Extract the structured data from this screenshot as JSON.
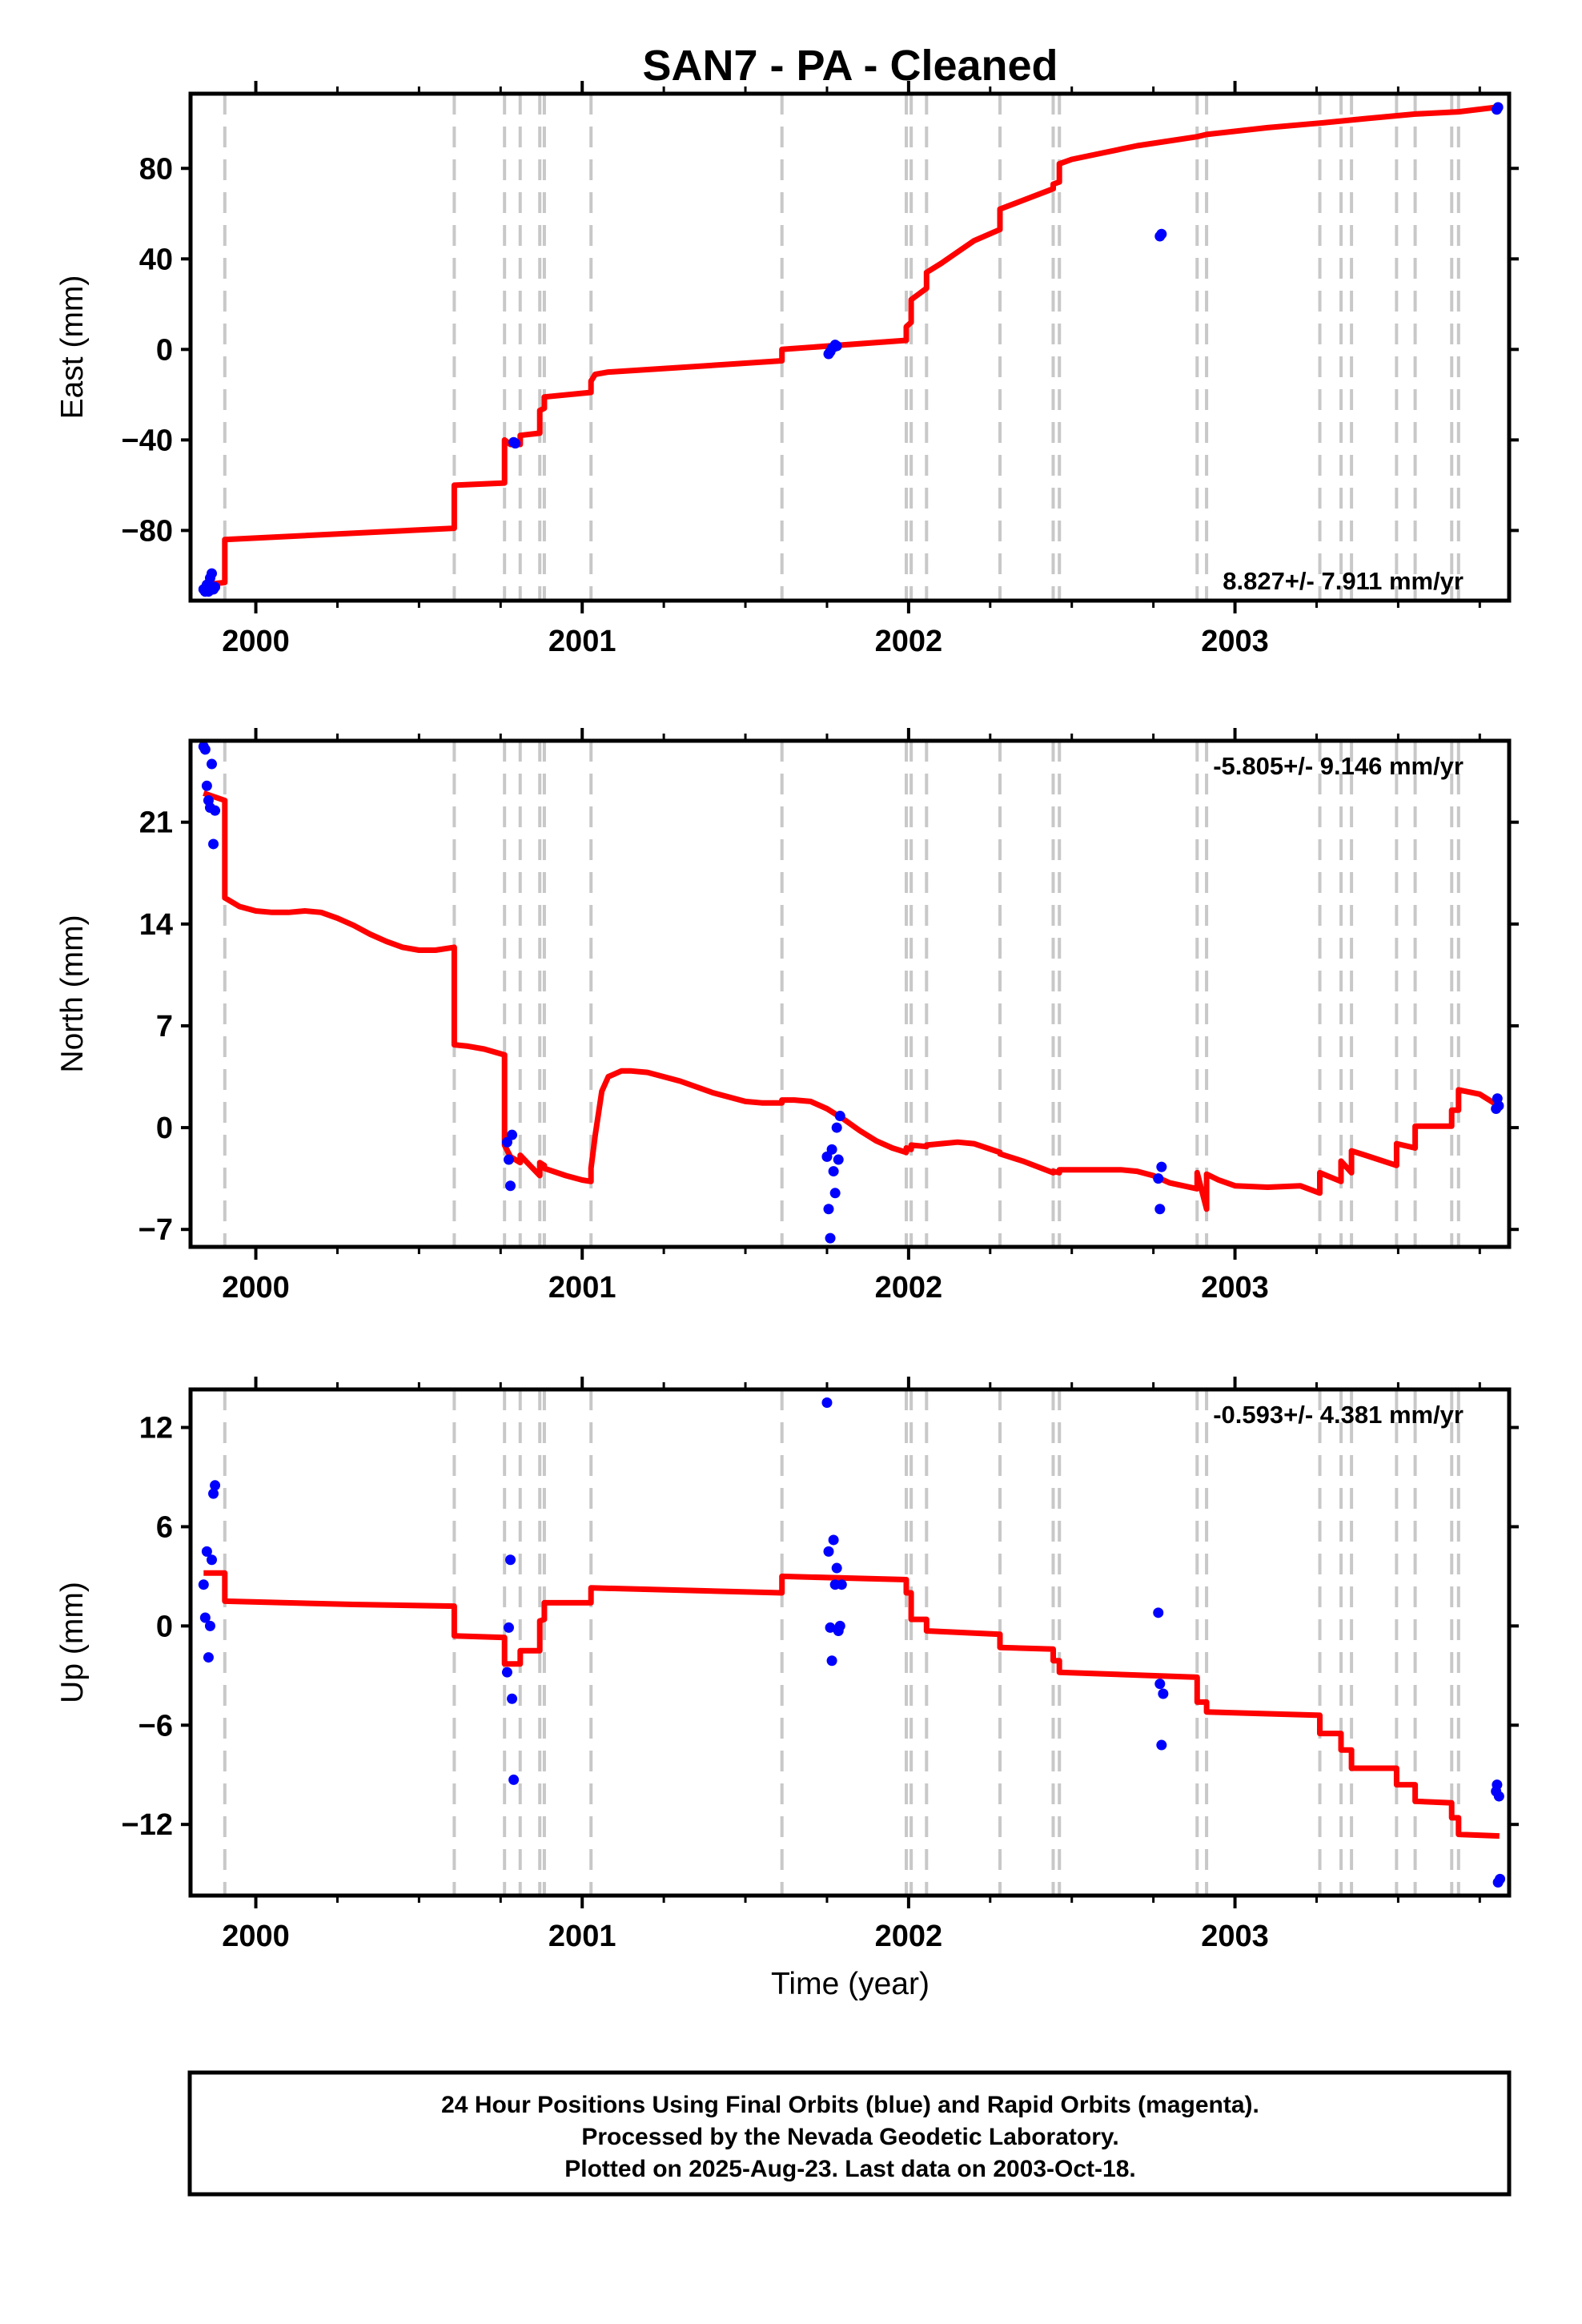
{
  "colors": {
    "model": "#ff0000",
    "points": "#0000ff",
    "events": "#c8c8c8",
    "frame": "#000000"
  },
  "chart_data": {
    "title": "SAN7  - PA - Cleaned",
    "xlabel": "Time (year)",
    "xlim": [
      1999.8,
      2003.84
    ],
    "x_ticks": [
      2000,
      2001,
      2002,
      2003
    ],
    "x_tick_labels": [
      "2000",
      "2001",
      "2002",
      "2003"
    ],
    "event_lines": [
      1999.905,
      2000.608,
      2000.762,
      2000.81,
      2000.87,
      2000.884,
      2001.027,
      2001.612,
      2001.993,
      2002.008,
      2002.055,
      2002.28,
      2002.443,
      2002.462,
      2002.884,
      2002.913,
      2003.26,
      2003.325,
      2003.357,
      2003.495,
      2003.552,
      2003.664,
      2003.685
    ],
    "panels": [
      {
        "name": "east",
        "type": "scatter",
        "ylabel": "East (mm)",
        "ylim": [
          -111,
          113
        ],
        "y_ticks": [
          -80,
          -40,
          0,
          40,
          80
        ],
        "y_tick_labels": [
          "−80",
          "−40",
          "0",
          "40",
          "80"
        ],
        "rate_label": "8.827+/- 7.911 mm/yr",
        "rate_position": "bottom-right",
        "points": [
          [
            1999.84,
            -106
          ],
          [
            1999.845,
            -107
          ],
          [
            1999.85,
            -104
          ],
          [
            1999.855,
            -107
          ],
          [
            1999.86,
            -101
          ],
          [
            1999.865,
            -99
          ],
          [
            1999.87,
            -106
          ],
          [
            1999.875,
            -105
          ],
          [
            2000.79,
            -41
          ],
          [
            2000.795,
            -41.5
          ],
          [
            2001.755,
            -2
          ],
          [
            2001.76,
            -1
          ],
          [
            2001.765,
            0.5
          ],
          [
            2001.77,
            1
          ],
          [
            2001.775,
            2
          ],
          [
            2001.78,
            1.5
          ],
          [
            2002.77,
            50
          ],
          [
            2002.775,
            51
          ],
          [
            2003.802,
            106
          ],
          [
            2003.806,
            107
          ]
        ],
        "model": [
          [
            1999.84,
            -104
          ],
          [
            1999.905,
            -103
          ],
          [
            1999.905,
            -84
          ],
          [
            2000.608,
            -79
          ],
          [
            2000.608,
            -60
          ],
          [
            2000.762,
            -59
          ],
          [
            2000.762,
            -40
          ],
          [
            2000.78,
            -42
          ],
          [
            2000.81,
            -42
          ],
          [
            2000.81,
            -38
          ],
          [
            2000.87,
            -37
          ],
          [
            2000.87,
            -27
          ],
          [
            2000.884,
            -26
          ],
          [
            2000.884,
            -21
          ],
          [
            2001.027,
            -19
          ],
          [
            2001.027,
            -14
          ],
          [
            2001.04,
            -11
          ],
          [
            2001.08,
            -10
          ],
          [
            2001.3,
            -8
          ],
          [
            2001.612,
            -5
          ],
          [
            2001.612,
            0
          ],
          [
            2001.993,
            4
          ],
          [
            2001.993,
            10
          ],
          [
            2002.008,
            12
          ],
          [
            2002.008,
            22
          ],
          [
            2002.055,
            27
          ],
          [
            2002.055,
            34
          ],
          [
            2002.1,
            38
          ],
          [
            2002.15,
            43
          ],
          [
            2002.2,
            48
          ],
          [
            2002.28,
            53
          ],
          [
            2002.28,
            62
          ],
          [
            2002.443,
            71
          ],
          [
            2002.443,
            73
          ],
          [
            2002.462,
            74
          ],
          [
            2002.462,
            82
          ],
          [
            2002.5,
            84
          ],
          [
            2002.6,
            87
          ],
          [
            2002.7,
            90
          ],
          [
            2002.884,
            94
          ],
          [
            2002.913,
            95
          ],
          [
            2003.1,
            98
          ],
          [
            2003.26,
            100
          ],
          [
            2003.4,
            102
          ],
          [
            2003.552,
            104
          ],
          [
            2003.685,
            105
          ],
          [
            2003.8,
            107
          ],
          [
            2003.81,
            107
          ]
        ]
      },
      {
        "name": "north",
        "type": "scatter",
        "ylabel": "North (mm)",
        "ylim": [
          -8.2,
          26.6
        ],
        "y_ticks": [
          -7,
          0,
          7,
          14,
          21
        ],
        "y_tick_labels": [
          "−7",
          "0",
          "7",
          "14",
          "21"
        ],
        "rate_label": "-5.805+/- 9.146 mm/yr",
        "rate_position": "top-right",
        "points": [
          [
            1999.84,
            26.2
          ],
          [
            1999.845,
            26
          ],
          [
            1999.85,
            23.5
          ],
          [
            1999.855,
            22.5
          ],
          [
            1999.86,
            22
          ],
          [
            1999.865,
            25
          ],
          [
            1999.87,
            19.5
          ],
          [
            1999.875,
            21.8
          ],
          [
            2000.77,
            -1
          ],
          [
            2000.775,
            -2.2
          ],
          [
            2000.78,
            -4
          ],
          [
            2000.785,
            -0.5
          ],
          [
            2001.75,
            -2
          ],
          [
            2001.755,
            -5.6
          ],
          [
            2001.76,
            -7.6
          ],
          [
            2001.765,
            -1.5
          ],
          [
            2001.77,
            -3
          ],
          [
            2001.775,
            -4.5
          ],
          [
            2001.78,
            0
          ],
          [
            2001.785,
            -2.2
          ],
          [
            2001.79,
            0.8
          ],
          [
            2002.765,
            -3.5
          ],
          [
            2002.77,
            -5.6
          ],
          [
            2002.775,
            -2.7
          ],
          [
            2003.8,
            1.3
          ],
          [
            2003.804,
            2
          ],
          [
            2003.808,
            1.5
          ]
        ],
        "model": [
          [
            1999.84,
            23
          ],
          [
            1999.905,
            22.5
          ],
          [
            1999.905,
            15.8
          ],
          [
            1999.95,
            15.2
          ],
          [
            2000.0,
            14.9
          ],
          [
            2000.05,
            14.8
          ],
          [
            2000.1,
            14.8
          ],
          [
            2000.15,
            14.9
          ],
          [
            2000.2,
            14.8
          ],
          [
            2000.25,
            14.4
          ],
          [
            2000.3,
            13.9
          ],
          [
            2000.35,
            13.3
          ],
          [
            2000.4,
            12.8
          ],
          [
            2000.45,
            12.4
          ],
          [
            2000.5,
            12.2
          ],
          [
            2000.55,
            12.2
          ],
          [
            2000.608,
            12.4
          ],
          [
            2000.608,
            5.7
          ],
          [
            2000.65,
            5.6
          ],
          [
            2000.7,
            5.4
          ],
          [
            2000.762,
            5
          ],
          [
            2000.762,
            -1.2
          ],
          [
            2000.78,
            -2
          ],
          [
            2000.81,
            -2.4
          ],
          [
            2000.81,
            -1.9
          ],
          [
            2000.87,
            -3.3
          ],
          [
            2000.87,
            -2.4
          ],
          [
            2000.884,
            -2.6
          ],
          [
            2000.884,
            -2.8
          ],
          [
            2000.95,
            -3.3
          ],
          [
            2001.0,
            -3.6
          ],
          [
            2001.027,
            -3.7
          ],
          [
            2001.027,
            -2.8
          ],
          [
            2001.04,
            -0.5
          ],
          [
            2001.06,
            2.5
          ],
          [
            2001.08,
            3.5
          ],
          [
            2001.12,
            3.9
          ],
          [
            2001.15,
            3.9
          ],
          [
            2001.2,
            3.8
          ],
          [
            2001.3,
            3.2
          ],
          [
            2001.4,
            2.4
          ],
          [
            2001.5,
            1.8
          ],
          [
            2001.55,
            1.7
          ],
          [
            2001.612,
            1.7
          ],
          [
            2001.612,
            1.9
          ],
          [
            2001.65,
            1.9
          ],
          [
            2001.7,
            1.8
          ],
          [
            2001.75,
            1.3
          ],
          [
            2001.8,
            0.6
          ],
          [
            2001.85,
            -0.2
          ],
          [
            2001.9,
            -0.9
          ],
          [
            2001.95,
            -1.4
          ],
          [
            2001.993,
            -1.7
          ],
          [
            2001.993,
            -1.4
          ],
          [
            2002.008,
            -1.5
          ],
          [
            2002.008,
            -1.2
          ],
          [
            2002.055,
            -1.3
          ],
          [
            2002.055,
            -1.2
          ],
          [
            2002.1,
            -1.1
          ],
          [
            2002.15,
            -1
          ],
          [
            2002.2,
            -1.1
          ],
          [
            2002.28,
            -1.7
          ],
          [
            2002.28,
            -1.8
          ],
          [
            2002.35,
            -2.3
          ],
          [
            2002.443,
            -3.1
          ],
          [
            2002.443,
            -3
          ],
          [
            2002.462,
            -3.1
          ],
          [
            2002.462,
            -2.9
          ],
          [
            2002.5,
            -2.9
          ],
          [
            2002.6,
            -2.9
          ],
          [
            2002.65,
            -2.9
          ],
          [
            2002.7,
            -3
          ],
          [
            2002.75,
            -3.3
          ],
          [
            2002.8,
            -3.8
          ],
          [
            2002.884,
            -4.2
          ],
          [
            2002.884,
            -3.1
          ],
          [
            2002.913,
            -5.6
          ],
          [
            2002.913,
            -3.2
          ],
          [
            2002.95,
            -3.6
          ],
          [
            2003.0,
            -4
          ],
          [
            2003.1,
            -4.1
          ],
          [
            2003.2,
            -4
          ],
          [
            2003.26,
            -4.5
          ],
          [
            2003.26,
            -3.1
          ],
          [
            2003.325,
            -3.7
          ],
          [
            2003.325,
            -2.3
          ],
          [
            2003.357,
            -3.1
          ],
          [
            2003.357,
            -1.6
          ],
          [
            2003.4,
            -1.9
          ],
          [
            2003.495,
            -2.6
          ],
          [
            2003.495,
            -1.1
          ],
          [
            2003.552,
            -1.4
          ],
          [
            2003.552,
            0.1
          ],
          [
            2003.664,
            0.1
          ],
          [
            2003.664,
            1.2
          ],
          [
            2003.685,
            1.2
          ],
          [
            2003.685,
            2.6
          ],
          [
            2003.75,
            2.3
          ],
          [
            2003.8,
            1.6
          ],
          [
            2003.81,
            1.5
          ]
        ]
      },
      {
        "name": "up",
        "type": "scatter",
        "ylabel": "Up (mm)",
        "ylim": [
          -16.3,
          14.3
        ],
        "y_ticks": [
          -12,
          -6,
          0,
          6,
          12
        ],
        "y_tick_labels": [
          "−12",
          "−6",
          "0",
          "6",
          "12"
        ],
        "rate_label": "-0.593+/- 4.381 mm/yr",
        "rate_position": "top-right",
        "points": [
          [
            1999.84,
            2.5
          ],
          [
            1999.845,
            0.5
          ],
          [
            1999.85,
            4.5
          ],
          [
            1999.855,
            -1.9
          ],
          [
            1999.86,
            0
          ],
          [
            1999.865,
            4
          ],
          [
            1999.87,
            8
          ],
          [
            1999.875,
            8.5
          ],
          [
            2000.77,
            -2.8
          ],
          [
            2000.775,
            -0.1
          ],
          [
            2000.78,
            4
          ],
          [
            2000.785,
            -4.4
          ],
          [
            2000.79,
            -9.3
          ],
          [
            2001.75,
            13.5
          ],
          [
            2001.755,
            4.5
          ],
          [
            2001.76,
            -0.1
          ],
          [
            2001.765,
            -2.1
          ],
          [
            2001.77,
            5.2
          ],
          [
            2001.775,
            2.5
          ],
          [
            2001.78,
            3.5
          ],
          [
            2001.785,
            -0.3
          ],
          [
            2001.79,
            0
          ],
          [
            2001.795,
            2.5
          ],
          [
            2002.765,
            0.8
          ],
          [
            2002.77,
            -3.5
          ],
          [
            2002.775,
            -7.2
          ],
          [
            2002.78,
            -4.1
          ],
          [
            2003.8,
            -10
          ],
          [
            2003.803,
            -9.6
          ],
          [
            2003.806,
            -15.5
          ],
          [
            2003.809,
            -10.3
          ],
          [
            2003.812,
            -15.3
          ]
        ],
        "model": [
          [
            1999.84,
            3.2
          ],
          [
            1999.905,
            3.2
          ],
          [
            1999.905,
            1.5
          ],
          [
            2000.3,
            1.3
          ],
          [
            2000.608,
            1.2
          ],
          [
            2000.608,
            -0.6
          ],
          [
            2000.762,
            -0.7
          ],
          [
            2000.762,
            -2.3
          ],
          [
            2000.81,
            -2.3
          ],
          [
            2000.81,
            -1.5
          ],
          [
            2000.87,
            -1.5
          ],
          [
            2000.87,
            0.3
          ],
          [
            2000.884,
            0.4
          ],
          [
            2000.884,
            1.4
          ],
          [
            2001.027,
            1.4
          ],
          [
            2001.027,
            2.3
          ],
          [
            2001.612,
            2
          ],
          [
            2001.612,
            3
          ],
          [
            2001.993,
            2.8
          ],
          [
            2001.993,
            2
          ],
          [
            2002.008,
            2
          ],
          [
            2002.008,
            0.4
          ],
          [
            2002.055,
            0.4
          ],
          [
            2002.055,
            -0.3
          ],
          [
            2002.28,
            -0.5
          ],
          [
            2002.28,
            -1.3
          ],
          [
            2002.443,
            -1.4
          ],
          [
            2002.443,
            -2.1
          ],
          [
            2002.462,
            -2.1
          ],
          [
            2002.462,
            -2.8
          ],
          [
            2002.884,
            -3.1
          ],
          [
            2002.884,
            -4.6
          ],
          [
            2002.913,
            -4.6
          ],
          [
            2002.913,
            -5.2
          ],
          [
            2003.26,
            -5.4
          ],
          [
            2003.26,
            -6.5
          ],
          [
            2003.325,
            -6.5
          ],
          [
            2003.325,
            -7.5
          ],
          [
            2003.357,
            -7.5
          ],
          [
            2003.357,
            -8.6
          ],
          [
            2003.495,
            -8.6
          ],
          [
            2003.495,
            -9.6
          ],
          [
            2003.552,
            -9.6
          ],
          [
            2003.552,
            -10.6
          ],
          [
            2003.664,
            -10.7
          ],
          [
            2003.664,
            -11.6
          ],
          [
            2003.685,
            -11.6
          ],
          [
            2003.685,
            -12.6
          ],
          [
            2003.81,
            -12.7
          ]
        ]
      }
    ]
  },
  "footer": {
    "line1": "24 Hour Positions Using Final Orbits (blue) and Rapid Orbits (magenta).",
    "line2": "Processed by the Nevada Geodetic Laboratory.",
    "line3": "Plotted on 2025-Aug-23. Last data on 2003-Oct-18."
  }
}
